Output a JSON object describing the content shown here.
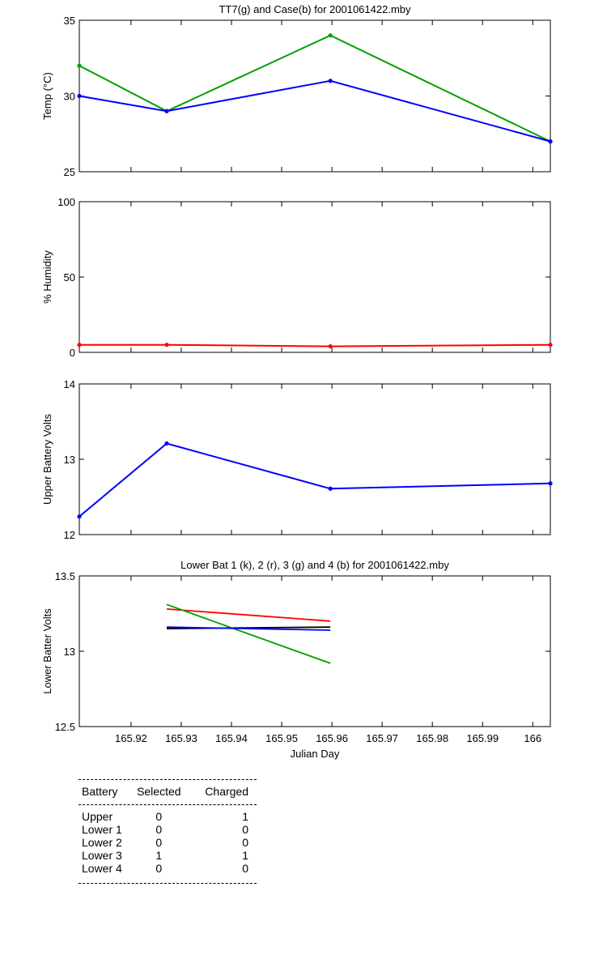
{
  "chart_data": [
    {
      "type": "line",
      "title": "TT7(g) and Case(b) for 2001061422.mby",
      "ylabel": "Temp  (°C)",
      "xlim": [
        165.9097,
        166.0035
      ],
      "ylim": [
        25,
        35
      ],
      "yticks": [
        25,
        30,
        35
      ],
      "grid": false,
      "series": [
        {
          "color": "#00a000",
          "x": [
            165.9097,
            165.9271,
            165.9597,
            166.0035
          ],
          "y": [
            32,
            29,
            34,
            27
          ]
        },
        {
          "color": "#0000ff",
          "x": [
            165.9097,
            165.9271,
            165.9597,
            166.0035
          ],
          "y": [
            30,
            29,
            31,
            27
          ]
        }
      ]
    },
    {
      "type": "line",
      "ylabel": "% Humidity",
      "xlim": [
        165.9097,
        166.0035
      ],
      "ylim": [
        0,
        100
      ],
      "yticks": [
        0,
        50,
        100
      ],
      "grid": false,
      "series": [
        {
          "color": "#ff0000",
          "x": [
            165.9097,
            165.9271,
            165.9597,
            166.0035
          ],
          "y": [
            5,
            5,
            4,
            5
          ]
        }
      ]
    },
    {
      "type": "line",
      "ylabel": "Upper Battery Volts",
      "xlim": [
        165.9097,
        166.0035
      ],
      "ylim": [
        12,
        14
      ],
      "yticks": [
        12,
        13,
        14
      ],
      "grid": false,
      "series": [
        {
          "color": "#0000ff",
          "x": [
            165.9097,
            165.9271,
            165.9597,
            166.0035
          ],
          "y": [
            12.24,
            13.21,
            12.61,
            12.68
          ]
        }
      ]
    },
    {
      "type": "line",
      "title": "Lower Bat 1 (k), 2 (r), 3 (g) and 4 (b) for 2001061422.mby",
      "xlabel": "Julian Day",
      "ylabel": "Lower Batter Volts",
      "xlim": [
        165.9097,
        166.0035
      ],
      "ylim": [
        12.5,
        13.5
      ],
      "yticks": [
        12.5,
        13,
        13.5
      ],
      "xticks": [
        165.92,
        165.93,
        165.94,
        165.95,
        165.96,
        165.97,
        165.98,
        165.99,
        166
      ],
      "grid": false,
      "series": [
        {
          "color": "#000000",
          "x": [
            165.9271,
            165.9597
          ],
          "y": [
            13.15,
            13.16
          ]
        },
        {
          "color": "#ff0000",
          "x": [
            165.9271,
            165.9597
          ],
          "y": [
            13.28,
            13.2
          ]
        },
        {
          "color": "#00a000",
          "x": [
            165.9271,
            165.9597
          ],
          "y": [
            13.31,
            12.92
          ]
        },
        {
          "color": "#0000ff",
          "x": [
            165.9271,
            165.9597
          ],
          "y": [
            13.16,
            13.14
          ]
        }
      ]
    }
  ],
  "status_table": {
    "headers": [
      "Battery",
      "Selected",
      "Charged"
    ],
    "rows": [
      {
        "battery": "Upper",
        "selected": "0",
        "charged": "1"
      },
      {
        "battery": "Lower 1",
        "selected": "0",
        "charged": "0"
      },
      {
        "battery": "Lower 2",
        "selected": "0",
        "charged": "0"
      },
      {
        "battery": "Lower 3",
        "selected": "1",
        "charged": "1"
      },
      {
        "battery": "Lower 4",
        "selected": "0",
        "charged": "0"
      }
    ]
  }
}
